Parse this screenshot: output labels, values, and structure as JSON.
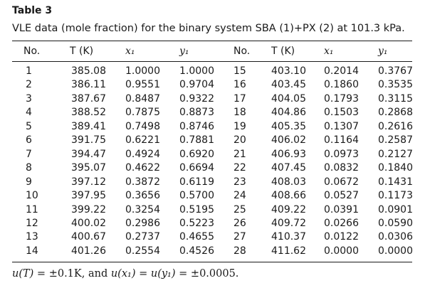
{
  "caption": {
    "title": "Table 3",
    "text": "VLE data (mole fraction) for the binary system SBA (1)+PX (2) at 101.3 kPa."
  },
  "table": {
    "headers": [
      "No.",
      "T (K)",
      "x₁",
      "y₁",
      "No.",
      "T (K)",
      "x₁",
      "y₁"
    ],
    "rows": [
      [
        "1",
        "385.08",
        "1.0000",
        "1.0000",
        "15",
        "403.10",
        "0.2014",
        "0.3767"
      ],
      [
        "2",
        "386.11",
        "0.9551",
        "0.9704",
        "16",
        "403.45",
        "0.1860",
        "0.3535"
      ],
      [
        "3",
        "387.67",
        "0.8487",
        "0.9322",
        "17",
        "404.05",
        "0.1793",
        "0.3115"
      ],
      [
        "4",
        "388.52",
        "0.7875",
        "0.8873",
        "18",
        "404.86",
        "0.1503",
        "0.2868"
      ],
      [
        "5",
        "389.41",
        "0.7498",
        "0.8746",
        "19",
        "405.35",
        "0.1307",
        "0.2616"
      ],
      [
        "6",
        "391.75",
        "0.6221",
        "0.7881",
        "20",
        "406.02",
        "0.1164",
        "0.2587"
      ],
      [
        "7",
        "394.47",
        "0.4924",
        "0.6920",
        "21",
        "406.93",
        "0.0973",
        "0.2127"
      ],
      [
        "8",
        "395.07",
        "0.4622",
        "0.6694",
        "22",
        "407.45",
        "0.0832",
        "0.1840"
      ],
      [
        "9",
        "397.12",
        "0.3872",
        "0.6119",
        "23",
        "408.03",
        "0.0672",
        "0.1431"
      ],
      [
        "10",
        "397.95",
        "0.3656",
        "0.5700",
        "24",
        "408.66",
        "0.0527",
        "0.1173"
      ],
      [
        "11",
        "399.22",
        "0.3254",
        "0.5195",
        "25",
        "409.22",
        "0.0391",
        "0.0901"
      ],
      [
        "12",
        "400.02",
        "0.2986",
        "0.5223",
        "26",
        "409.72",
        "0.0266",
        "0.0590"
      ],
      [
        "13",
        "400.67",
        "0.2737",
        "0.4655",
        "27",
        "410.37",
        "0.0122",
        "0.0306"
      ],
      [
        "14",
        "401.26",
        "0.2554",
        "0.4526",
        "28",
        "411.62",
        "0.0000",
        "0.0000"
      ]
    ]
  },
  "footnote": {
    "u_T": "u(T)",
    "t1": " = ±0.1K, and ",
    "u_x1": "u(x₁)",
    "eq": " = ",
    "u_y1": "u(y₁)",
    "t2": " = ±0.0005."
  }
}
